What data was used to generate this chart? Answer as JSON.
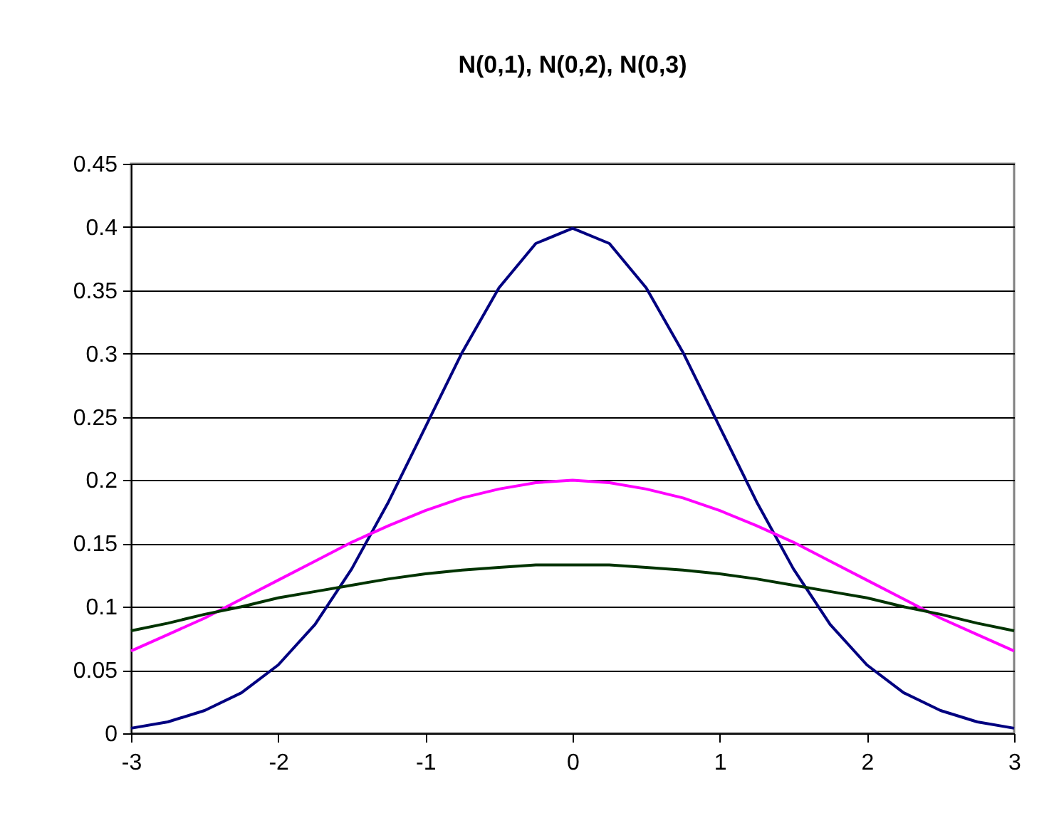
{
  "chart_data": {
    "type": "line",
    "title": "N(0,1), N(0,2), N(0,3)",
    "x": [
      -3,
      -2.75,
      -2.5,
      -2.25,
      -2,
      -1.75,
      -1.5,
      -1.25,
      -1,
      -0.75,
      -0.5,
      -0.25,
      0,
      0.25,
      0.5,
      0.75,
      1,
      1.25,
      1.5,
      1.75,
      2,
      2.25,
      2.5,
      2.75,
      3
    ],
    "series": [
      {
        "color": "#000080",
        "values": [
          0.004,
          0.009,
          0.018,
          0.032,
          0.054,
          0.086,
          0.13,
          0.183,
          0.242,
          0.301,
          0.352,
          0.387,
          0.399,
          0.387,
          0.352,
          0.301,
          0.242,
          0.183,
          0.13,
          0.086,
          0.054,
          0.032,
          0.018,
          0.009,
          0.004
        ]
      },
      {
        "color": "#ff00ff",
        "values": [
          0.065,
          0.078,
          0.091,
          0.106,
          0.121,
          0.136,
          0.151,
          0.164,
          0.176,
          0.186,
          0.193,
          0.198,
          0.2,
          0.198,
          0.193,
          0.186,
          0.176,
          0.164,
          0.151,
          0.136,
          0.121,
          0.106,
          0.091,
          0.078,
          0.065
        ]
      },
      {
        "color": "#003300",
        "values": [
          0.081,
          0.087,
          0.094,
          0.1,
          0.107,
          0.112,
          0.117,
          0.122,
          0.126,
          0.129,
          0.131,
          0.133,
          0.133,
          0.133,
          0.131,
          0.129,
          0.126,
          0.122,
          0.117,
          0.112,
          0.107,
          0.1,
          0.094,
          0.087,
          0.081
        ]
      }
    ],
    "xlim": [
      -3,
      3
    ],
    "xticks": [
      -3,
      -2,
      -1,
      0,
      1,
      2,
      3
    ],
    "ylim": [
      0,
      0.45
    ],
    "yticks": [
      0,
      0.05,
      0.1,
      0.15,
      0.2,
      0.25,
      0.3,
      0.35,
      0.4,
      0.45
    ],
    "grid": "y",
    "legend": false,
    "marker": "none",
    "line_style": "solid"
  }
}
